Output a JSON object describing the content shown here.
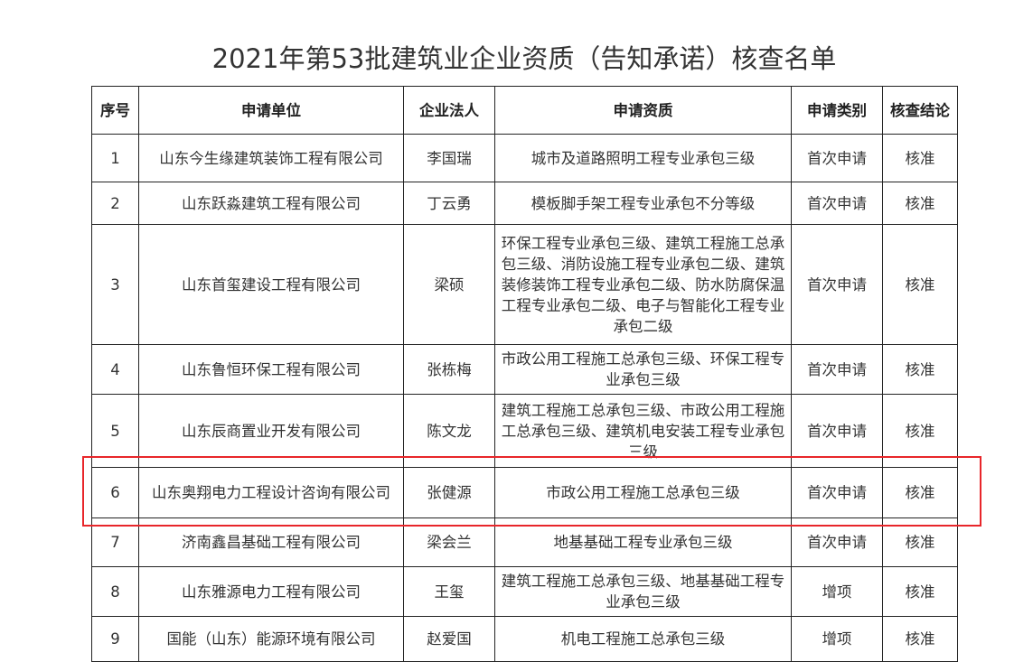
{
  "title": "2021年第53批建筑业企业资质（告知承诺）核查名单",
  "headers": [
    "序号",
    "申请单位",
    "企业法人",
    "申请资质",
    "申请类别",
    "核查结论"
  ],
  "rows": [
    {
      "no": "1",
      "company": "山东今生缘建筑装饰工程有限公司",
      "person": "李国瑞",
      "qual": "城市及道路照明工程专业承包三级",
      "type": "首次申请",
      "result": "核准"
    },
    {
      "no": "2",
      "company": "山东跃淼建筑工程有限公司",
      "person": "丁云勇",
      "qual": "模板脚手架工程专业承包不分等级",
      "type": "首次申请",
      "result": "核准"
    },
    {
      "no": "3",
      "company": "山东首玺建设工程有限公司",
      "person": "梁硕",
      "qual": "环保工程专业承包三级、建筑工程施工总承包三级、消防设施工程专业承包二级、建筑装修装饰工程专业承包二级、防水防腐保温工程专业承包二级、电子与智能化工程专业承包二级",
      "type": "首次申请",
      "result": "核准"
    },
    {
      "no": "4",
      "company": "山东鲁恒环保工程有限公司",
      "person": "张栋梅",
      "qual": "市政公用工程施工总承包三级、环保工程专业承包三级",
      "type": "首次申请",
      "result": "核准"
    },
    {
      "no": "5",
      "company": "山东辰商置业开发有限公司",
      "person": "陈文龙",
      "qual": "建筑工程施工总承包三级、市政公用工程施工总承包三级、建筑机电安装工程专业承包三级",
      "type": "首次申请",
      "result": "核准"
    },
    {
      "no": "6",
      "company": "山东奥翔电力工程设计咨询有限公司",
      "person": "张健源",
      "qual": "市政公用工程施工总承包三级",
      "type": "首次申请",
      "result": "核准"
    },
    {
      "no": "7",
      "company": "济南鑫昌基础工程有限公司",
      "person": "梁会兰",
      "qual": "地基基础工程专业承包三级",
      "type": "首次申请",
      "result": "核准"
    },
    {
      "no": "8",
      "company": "山东雅源电力工程有限公司",
      "person": "王玺",
      "qual": "建筑工程施工总承包三级、地基基础工程专业承包三级",
      "type": "增项",
      "result": "核准"
    },
    {
      "no": "9",
      "company": "国能（山东）能源环境有限公司",
      "person": "赵爱国",
      "qual": "机电工程施工总承包三级",
      "type": "增项",
      "result": "核准"
    }
  ],
  "highlight_color": "#e8262a"
}
